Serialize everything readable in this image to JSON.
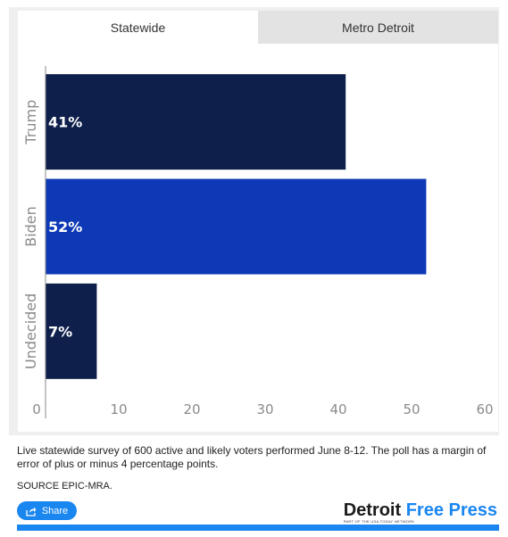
{
  "tabs": [
    {
      "label": "Statewide",
      "active": true
    },
    {
      "label": "Metro Detroit",
      "active": false
    }
  ],
  "chart_data": {
    "type": "bar",
    "orientation": "horizontal",
    "categories": [
      "Trump",
      "Biden",
      "Undecided"
    ],
    "values": [
      41,
      52,
      7
    ],
    "value_labels": [
      "41%",
      "52%",
      "7%"
    ],
    "colors": [
      "#0d1f4a",
      "#0e39b6",
      "#0d1f4a"
    ],
    "xlim": [
      0,
      60
    ],
    "x_ticks": [
      "0",
      "10",
      "20",
      "30",
      "40",
      "50",
      "60"
    ],
    "grid": false,
    "legend": "none"
  },
  "note": "Live statewide survey of 600 active and likely voters performed June 8-12. The poll has a margin of error of plus or minus 4 percentage points.",
  "source": "SOURCE EPIC-MRA.",
  "share_label": "Share",
  "brand": {
    "name_dark": "Detroit",
    "name_accent": "Free Press",
    "tagline": "PART OF THE USA TODAY NETWORK"
  }
}
